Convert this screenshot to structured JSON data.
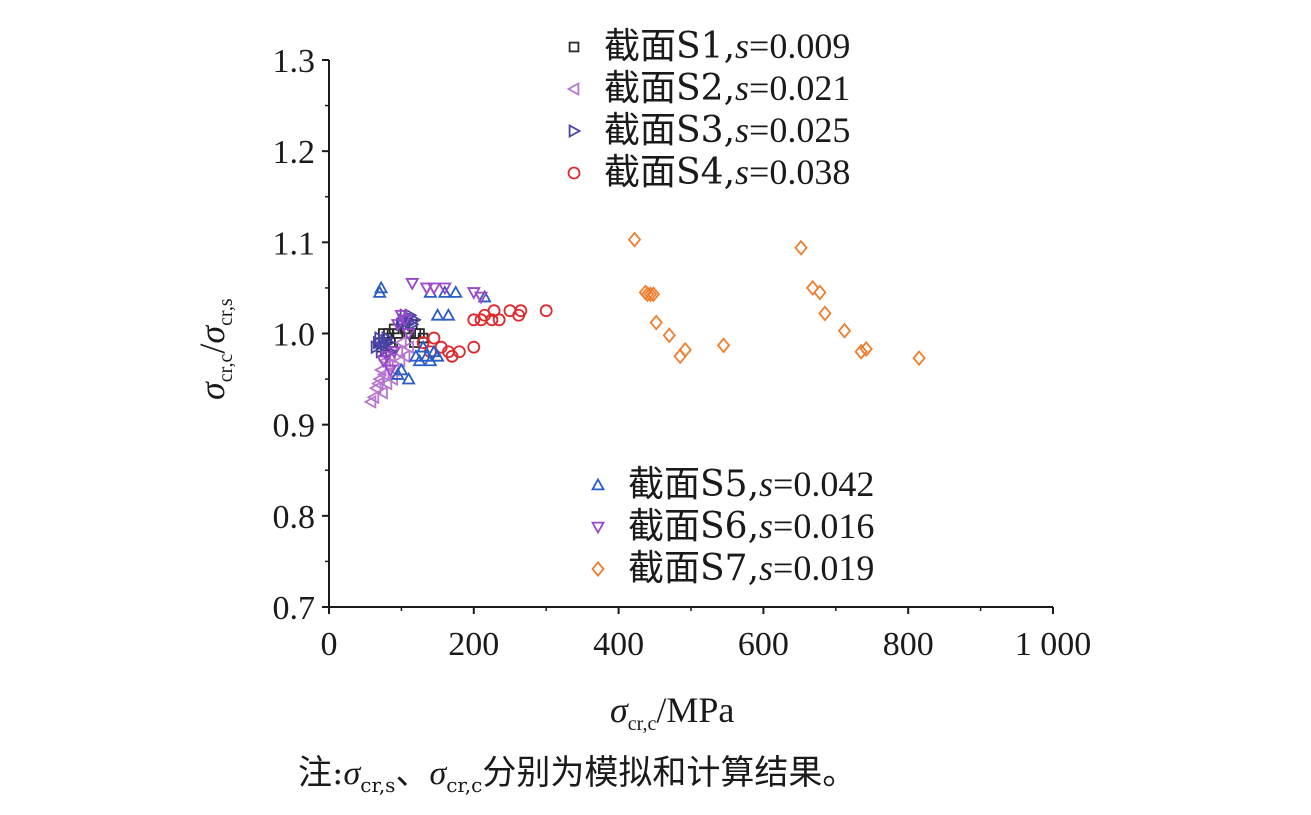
{
  "chart_data": {
    "type": "scatter",
    "xlabel": {
      "symbol": "σ",
      "subscript": "cr,c",
      "unit": "/MPa"
    },
    "ylabel": {
      "symbol1": "σ",
      "sub1": "cr,c",
      "slash": "/",
      "symbol2": "σ",
      "sub2": "cr,s"
    },
    "xlim": [
      0,
      1000
    ],
    "ylim": [
      0.7,
      1.3
    ],
    "x_ticks": [
      0,
      200,
      400,
      600,
      800,
      1000
    ],
    "x_tick_labels": [
      "0",
      "200",
      "400",
      "600",
      "800",
      "1 000"
    ],
    "y_ticks": [
      0.7,
      0.8,
      0.9,
      1.0,
      1.1,
      1.2,
      1.3
    ],
    "y_tick_labels": [
      "0.7",
      "0.8",
      "0.9",
      "1.0",
      "1.1",
      "1.2",
      "1.3"
    ],
    "grid": false,
    "legend_top": {
      "placement": "top",
      "entries": [
        0,
        1,
        2,
        3
      ]
    },
    "legend_bottom": {
      "placement": "bottom-middle",
      "entries": [
        4,
        5,
        6
      ]
    },
    "series": [
      {
        "name": "截面S1,s=0.009",
        "label_prefix": "截面S1,",
        "label_italic": "s",
        "label_suffix": "=0.009",
        "marker": "square",
        "color": "#2a2a2a",
        "points": [
          [
            70,
            0.99
          ],
          [
            72,
            0.985
          ],
          [
            75,
            1.0
          ],
          [
            78,
            0.98
          ],
          [
            80,
            0.995
          ],
          [
            82,
            1.0
          ],
          [
            85,
            0.99
          ],
          [
            88,
            0.985
          ],
          [
            90,
            1.005
          ],
          [
            95,
            1.0
          ],
          [
            100,
            1.01
          ],
          [
            105,
            1.005
          ],
          [
            110,
            1.0
          ],
          [
            115,
            1.01
          ],
          [
            118,
            0.99
          ],
          [
            120,
            1.0
          ],
          [
            125,
            1.0
          ],
          [
            130,
            0.995
          ]
        ]
      },
      {
        "name": "截面S2,s=0.021",
        "label_prefix": "截面S2,",
        "label_italic": "s",
        "label_suffix": "=0.021",
        "marker": "triangle-left",
        "color": "#b577cf",
        "points": [
          [
            58,
            0.925
          ],
          [
            62,
            0.93
          ],
          [
            65,
            0.94
          ],
          [
            68,
            0.945
          ],
          [
            70,
            0.95
          ],
          [
            72,
            0.96
          ],
          [
            74,
            0.935
          ],
          [
            76,
            0.955
          ],
          [
            78,
            0.97
          ],
          [
            80,
            0.945
          ],
          [
            82,
            0.965
          ],
          [
            85,
            0.975
          ],
          [
            88,
            0.95
          ],
          [
            90,
            0.96
          ],
          [
            95,
            0.98
          ],
          [
            98,
            0.97
          ],
          [
            100,
            0.99
          ],
          [
            105,
            0.975
          ],
          [
            110,
            0.985
          ]
        ]
      },
      {
        "name": "截面S3,s=0.025",
        "label_prefix": "截面S3,",
        "label_italic": "s",
        "label_suffix": "=0.025",
        "marker": "triangle-right",
        "color": "#4b44a8",
        "points": [
          [
            65,
            0.985
          ],
          [
            68,
            0.99
          ],
          [
            70,
            0.995
          ],
          [
            72,
            0.98
          ],
          [
            75,
            0.99
          ],
          [
            78,
            0.985
          ],
          [
            80,
            0.995
          ],
          [
            82,
            0.99
          ],
          [
            85,
            0.98
          ],
          [
            100,
            1.01
          ],
          [
            102,
            1.015
          ],
          [
            105,
            1.02
          ],
          [
            108,
            1.01
          ],
          [
            110,
            1.015
          ],
          [
            112,
            1.02
          ],
          [
            115,
            1.01
          ],
          [
            118,
            1.015
          ]
        ]
      },
      {
        "name": "截面S4,s=0.038",
        "label_prefix": "截面S4,",
        "label_italic": "s",
        "label_suffix": "=0.038",
        "marker": "circle",
        "color": "#e0292d",
        "points": [
          [
            130,
            0.99
          ],
          [
            140,
            0.98
          ],
          [
            145,
            0.995
          ],
          [
            155,
            0.985
          ],
          [
            165,
            0.98
          ],
          [
            170,
            0.975
          ],
          [
            180,
            0.98
          ],
          [
            200,
            0.985
          ],
          [
            200,
            1.015
          ],
          [
            210,
            1.015
          ],
          [
            215,
            1.02
          ],
          [
            225,
            1.015
          ],
          [
            228,
            1.025
          ],
          [
            235,
            1.015
          ],
          [
            250,
            1.025
          ],
          [
            262,
            1.02
          ],
          [
            265,
            1.025
          ],
          [
            300,
            1.025
          ]
        ]
      },
      {
        "name": "截面S5,s=0.042",
        "label_prefix": "截面S5,",
        "label_italic": "s",
        "label_suffix": "=0.042",
        "marker": "triangle-up",
        "color": "#2a5ec4",
        "points": [
          [
            70,
            1.045
          ],
          [
            72,
            1.05
          ],
          [
            95,
            0.955
          ],
          [
            100,
            0.96
          ],
          [
            110,
            0.95
          ],
          [
            120,
            0.975
          ],
          [
            125,
            0.97
          ],
          [
            130,
            0.985
          ],
          [
            135,
            0.975
          ],
          [
            140,
            0.97
          ],
          [
            145,
            0.98
          ],
          [
            150,
            0.975
          ],
          [
            140,
            1.045
          ],
          [
            150,
            1.02
          ],
          [
            160,
            1.045
          ],
          [
            165,
            1.02
          ],
          [
            175,
            1.045
          ],
          [
            215,
            1.04
          ]
        ]
      },
      {
        "name": "截面S6,s=0.016",
        "label_prefix": "截面S6,",
        "label_italic": "s",
        "label_suffix": "=0.016",
        "marker": "triangle-down",
        "color": "#9b47c9",
        "points": [
          [
            75,
            0.97
          ],
          [
            80,
            0.975
          ],
          [
            85,
            0.96
          ],
          [
            90,
            0.98
          ],
          [
            95,
            1.01
          ],
          [
            100,
            1.02
          ],
          [
            105,
            1.015
          ],
          [
            110,
            1.0
          ],
          [
            115,
            1.055
          ],
          [
            135,
            1.05
          ],
          [
            145,
            1.05
          ],
          [
            160,
            1.05
          ],
          [
            200,
            1.045
          ],
          [
            210,
            1.04
          ]
        ]
      },
      {
        "name": "截面S7,s=0.019",
        "label_prefix": "截面S7,",
        "label_italic": "s",
        "label_suffix": "=0.019",
        "marker": "diamond",
        "color": "#f07d2c",
        "points": [
          [
            422,
            1.103
          ],
          [
            437,
            1.045
          ],
          [
            440,
            1.043
          ],
          [
            444,
            1.043
          ],
          [
            448,
            1.043
          ],
          [
            452,
            1.012
          ],
          [
            470,
            0.998
          ],
          [
            485,
            0.975
          ],
          [
            492,
            0.982
          ],
          [
            545,
            0.987
          ],
          [
            652,
            1.094
          ],
          [
            668,
            1.05
          ],
          [
            678,
            1.045
          ],
          [
            685,
            1.022
          ],
          [
            712,
            1.003
          ],
          [
            735,
            0.98
          ],
          [
            742,
            0.983
          ],
          [
            815,
            0.973
          ]
        ]
      }
    ]
  },
  "note": {
    "prefix": "注:",
    "sym1": "σ",
    "sub1": "cr,s",
    "sep": "、",
    "sym2": "σ",
    "sub2": "cr,c",
    "suffix": "分别为模拟和计算结果。"
  }
}
